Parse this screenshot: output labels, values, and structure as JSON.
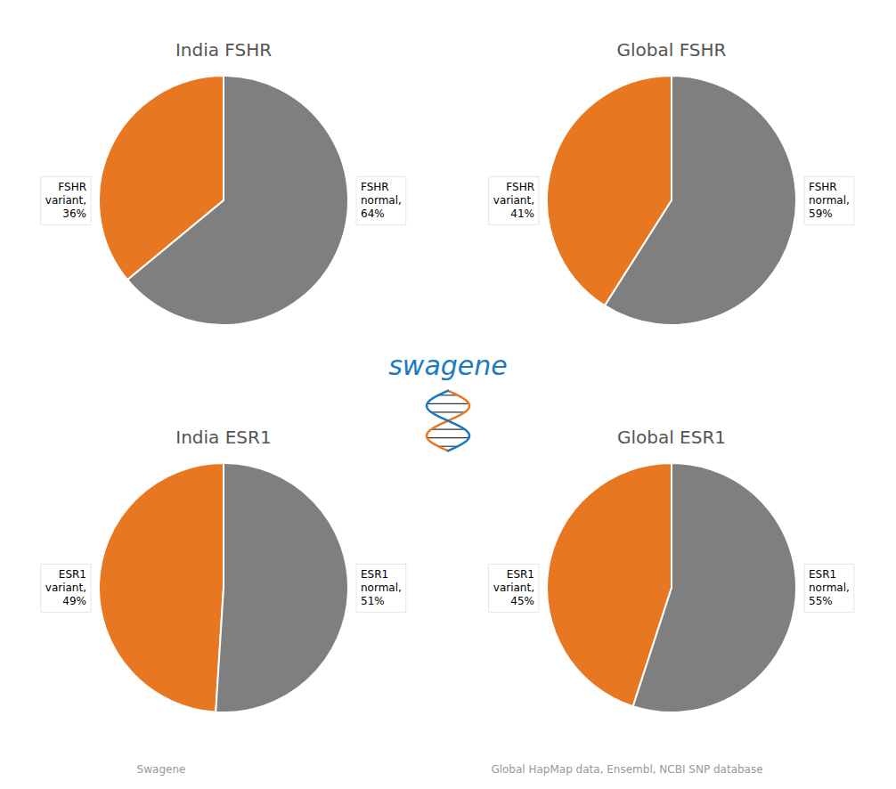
{
  "chart_data": [
    {
      "type": "pie",
      "title": "India FSHR",
      "values": [
        36,
        64
      ],
      "value_labels": [
        "FSHR\nvariant,\n36%",
        "FSHR\nnormal,\n64%"
      ],
      "colors": [
        "#E87722",
        "#7F7F7F"
      ],
      "data_labels": true
    },
    {
      "type": "pie",
      "title": "Global FSHR",
      "values": [
        41,
        59
      ],
      "value_labels": [
        "FSHR\nvariant,\n41%",
        "FSHR\nnormal,\n59%"
      ],
      "colors": [
        "#E87722",
        "#7F7F7F"
      ],
      "data_labels": true
    },
    {
      "type": "pie",
      "title": "India ESR1",
      "values": [
        49,
        51
      ],
      "value_labels": [
        "ESR1\nvariant,\n49%",
        "ESR1\nnormal,\n51%"
      ],
      "colors": [
        "#E87722",
        "#7F7F7F"
      ],
      "data_labels": true
    },
    {
      "type": "pie",
      "title": "Global ESR1",
      "values": [
        45,
        55
      ],
      "value_labels": [
        "ESR1\nvariant,\n45%",
        "ESR1\nnormal,\n55%"
      ],
      "colors": [
        "#E87722",
        "#7F7F7F"
      ],
      "data_labels": true
    }
  ],
  "annotations": [
    "swagene",
    "Swagene",
    "Global HapMap data, Ensembl, NCBI SNP database"
  ]
}
